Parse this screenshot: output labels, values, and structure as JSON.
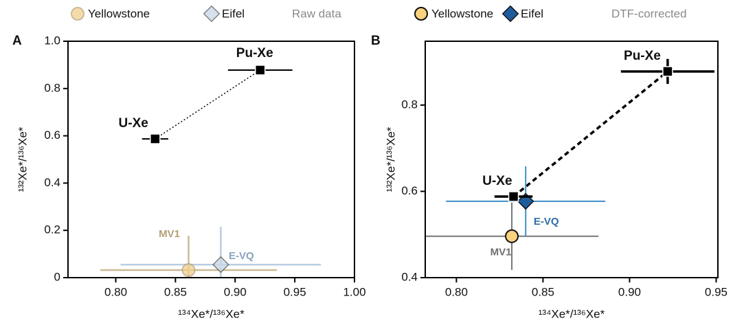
{
  "chart_data": [
    {
      "type": "scatter",
      "panel": "A",
      "note": "Raw data",
      "xlabel": "¹³⁴Xe*/¹³⁶Xe*",
      "ylabel": "¹³²Xe*/¹³⁶Xe*",
      "xlim": [
        0.76,
        1.0
      ],
      "ylim": [
        0,
        1.0
      ],
      "xticks": [
        {
          "value": 0.8,
          "label": "0.80"
        },
        0.85,
        {
          "value": 0.9,
          "label": "0.90"
        },
        0.95,
        {
          "value": 1.0,
          "label": "1.00"
        }
      ],
      "yticks": [
        0,
        0.2,
        0.4,
        0.6,
        0.8,
        {
          "value": 1.0,
          "label": "1.0"
        }
      ],
      "series": [
        {
          "name": "Yellowstone",
          "marker": "circle",
          "color": "#f2cf8c",
          "edge": "#b9a47f",
          "error_color": "#cdb995",
          "label_color": "#b4a078",
          "x": [
            0.861
          ],
          "y": [
            0.032
          ],
          "xerr": [
            0.074
          ],
          "yerr": [
            0.145
          ],
          "labels": [
            "MV1"
          ]
        },
        {
          "name": "Eifel",
          "marker": "diamond",
          "color": "#c9d8e8",
          "edge": "#555555",
          "error_color": "#b9cde2",
          "label_color": "#8aa3bf",
          "x": [
            0.888
          ],
          "y": [
            0.055
          ],
          "xerr": [
            0.084
          ],
          "yerr": [
            0.16
          ],
          "labels": [
            "E-VQ"
          ]
        }
      ],
      "reference_points": [
        {
          "label": "U-Xe",
          "x": 0.833,
          "y": 0.587,
          "xerr": 0.011,
          "yerr": 0.008
        },
        {
          "label": "Pu-Xe",
          "x": 0.921,
          "y": 0.878,
          "xerr": 0.027,
          "yerr": 0.012
        }
      ]
    },
    {
      "type": "scatter",
      "panel": "B",
      "note": "DTF-corrected",
      "xlabel": "¹³⁴Xe*/¹³⁶Xe*",
      "ylabel": "¹³²Xe*/¹³⁶Xe*",
      "xlim": [
        0.782,
        0.951
      ],
      "ylim": [
        0.4,
        0.948
      ],
      "xticks": [
        {
          "value": 0.8,
          "label": "0.80"
        },
        0.85,
        {
          "value": 0.9,
          "label": "0.90"
        },
        0.95
      ],
      "yticks": [
        0.4,
        0.6,
        0.8
      ],
      "series": [
        {
          "name": "Yellowstone",
          "marker": "circle",
          "color": "#f9d27e",
          "edge": "#111111",
          "error_color": "#777777",
          "label_color": "#6f6f6f",
          "x": [
            0.832
          ],
          "y": [
            0.496
          ],
          "xerr": [
            0.05
          ],
          "yerr": [
            0.078
          ],
          "labels": [
            "MV1"
          ]
        },
        {
          "name": "Eifel",
          "marker": "diamond",
          "color": "#1f5c9c",
          "edge": "#111111",
          "error_color": "#3f8fc8",
          "label_color": "#2e6ea6",
          "x": [
            0.84
          ],
          "y": [
            0.577
          ],
          "xerr": [
            0.046
          ],
          "yerr": [
            0.081
          ],
          "labels": [
            "E-VQ"
          ]
        }
      ],
      "reference_points": [
        {
          "label": "U-Xe",
          "x": 0.833,
          "y": 0.588,
          "xerr": 0.011,
          "yerr": 0.006
        },
        {
          "label": "Pu-Xe",
          "x": 0.922,
          "y": 0.878,
          "xerr": 0.027,
          "yerr": 0.029
        }
      ]
    }
  ]
}
